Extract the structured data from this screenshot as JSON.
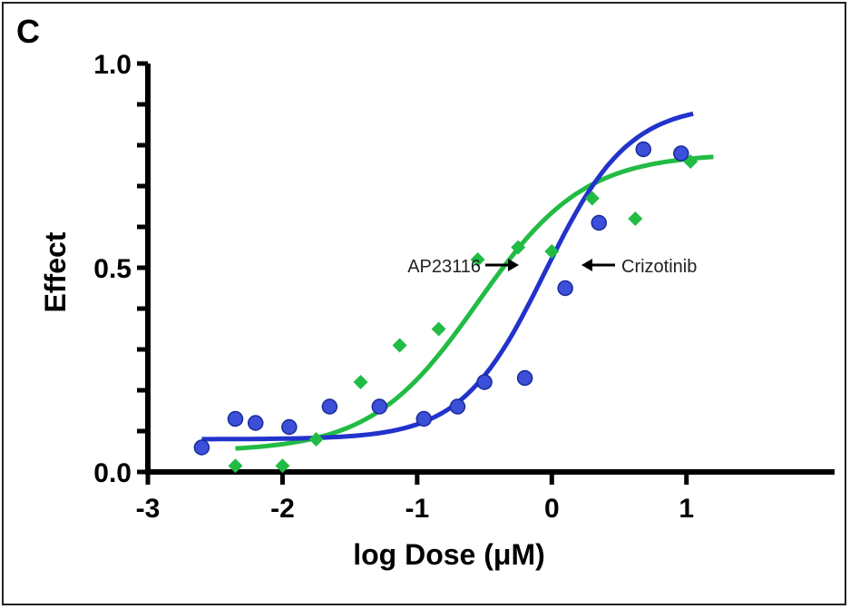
{
  "panel_label": "C",
  "chart_data": {
    "type": "scatter",
    "title": "",
    "xlabel": "log Dose (μM)",
    "ylabel": "Effect",
    "xlim": [
      -3,
      2.1
    ],
    "ylim": [
      0,
      1
    ],
    "x_ticks": [
      -3,
      -2,
      -1,
      0,
      1
    ],
    "y_tick_labels": [
      {
        "value": 0,
        "label": "0.0"
      },
      {
        "value": 0.5,
        "label": "0.5"
      },
      {
        "value": 1,
        "label": "1.0"
      }
    ],
    "y_minor_step": 0.1,
    "grid": false,
    "series": [
      {
        "name": "AP23116",
        "color": "#22bb44",
        "marker": "diamond",
        "x": [
          -2.35,
          -2.0,
          -1.75,
          -1.42,
          -1.13,
          -0.84,
          -0.55,
          -0.25,
          0.0,
          0.3,
          0.62,
          1.03
        ],
        "y": [
          0.015,
          0.015,
          0.08,
          0.22,
          0.31,
          0.35,
          0.52,
          0.55,
          0.54,
          0.67,
          0.62,
          0.76
        ],
        "curve": {
          "bottom": 0.05,
          "top": 0.78,
          "logEC50": -0.55,
          "hill": 1.1,
          "x_range": [
            -2.35,
            1.2
          ]
        }
      },
      {
        "name": "Crizotinib",
        "color": "#2233cc",
        "marker": "circle",
        "x": [
          -2.6,
          -2.35,
          -2.2,
          -1.95,
          -1.65,
          -1.28,
          -0.95,
          -0.7,
          -0.5,
          -0.2,
          0.1,
          0.35,
          0.68,
          0.96
        ],
        "y": [
          0.06,
          0.13,
          0.12,
          0.11,
          0.16,
          0.16,
          0.13,
          0.16,
          0.22,
          0.23,
          0.45,
          0.61,
          0.79,
          0.78
        ],
        "curve": {
          "bottom": 0.08,
          "top": 0.9,
          "logEC50": -0.05,
          "hill": 1.4,
          "x_range": [
            -2.6,
            1.05
          ]
        }
      }
    ],
    "annotations": [
      {
        "text": "AP23116",
        "arrow": "right"
      },
      {
        "text": "Crizotinib",
        "arrow": "left"
      }
    ]
  }
}
